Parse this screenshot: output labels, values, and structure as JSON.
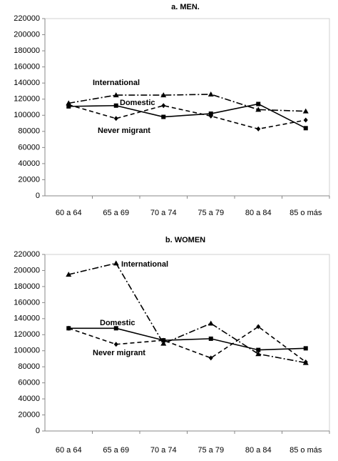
{
  "chart_data": [
    {
      "type": "line",
      "title": "a. MEN.",
      "categories": [
        "60 a 64",
        "65 a 69",
        "70 a 74",
        "75 a 79",
        "80 a 84",
        "85 o más"
      ],
      "ylim": [
        0,
        220000
      ],
      "yticks": [
        0,
        20000,
        40000,
        60000,
        80000,
        100000,
        120000,
        140000,
        160000,
        180000,
        200000,
        220000
      ],
      "grid": false,
      "series": [
        {
          "name": "International",
          "color": "#000000",
          "style": "dashdot",
          "marker": "triangle",
          "values": [
            115000,
            125000,
            125000,
            126000,
            107000,
            105000
          ]
        },
        {
          "name": "Domestic",
          "color": "#000000",
          "style": "solid",
          "marker": "square",
          "values": [
            111000,
            112000,
            98000,
            102000,
            114000,
            84000
          ]
        },
        {
          "name": "Never migrant",
          "color": "#000000",
          "style": "dashed",
          "marker": "diamond",
          "values": [
            113000,
            96000,
            112000,
            99000,
            83000,
            94000
          ]
        }
      ]
    },
    {
      "type": "line",
      "title": "b. WOMEN",
      "categories": [
        "60 a 64",
        "65 a 69",
        "70 a 74",
        "75 a 79",
        "80 a 84",
        "85 o más"
      ],
      "ylim": [
        0,
        220000
      ],
      "yticks": [
        0,
        20000,
        40000,
        60000,
        80000,
        100000,
        120000,
        140000,
        160000,
        180000,
        200000,
        220000
      ],
      "grid": false,
      "series": [
        {
          "name": "International",
          "color": "#000000",
          "style": "dashdot",
          "marker": "triangle",
          "values": [
            195000,
            209000,
            109000,
            134000,
            96000,
            85000
          ]
        },
        {
          "name": "Domestic",
          "color": "#000000",
          "style": "solid",
          "marker": "square",
          "values": [
            128000,
            128000,
            113000,
            115000,
            101000,
            103000
          ]
        },
        {
          "name": "Never migrant",
          "color": "#000000",
          "style": "dashed",
          "marker": "diamond",
          "values": [
            128000,
            108000,
            113000,
            91000,
            130000,
            86000
          ]
        }
      ]
    }
  ]
}
